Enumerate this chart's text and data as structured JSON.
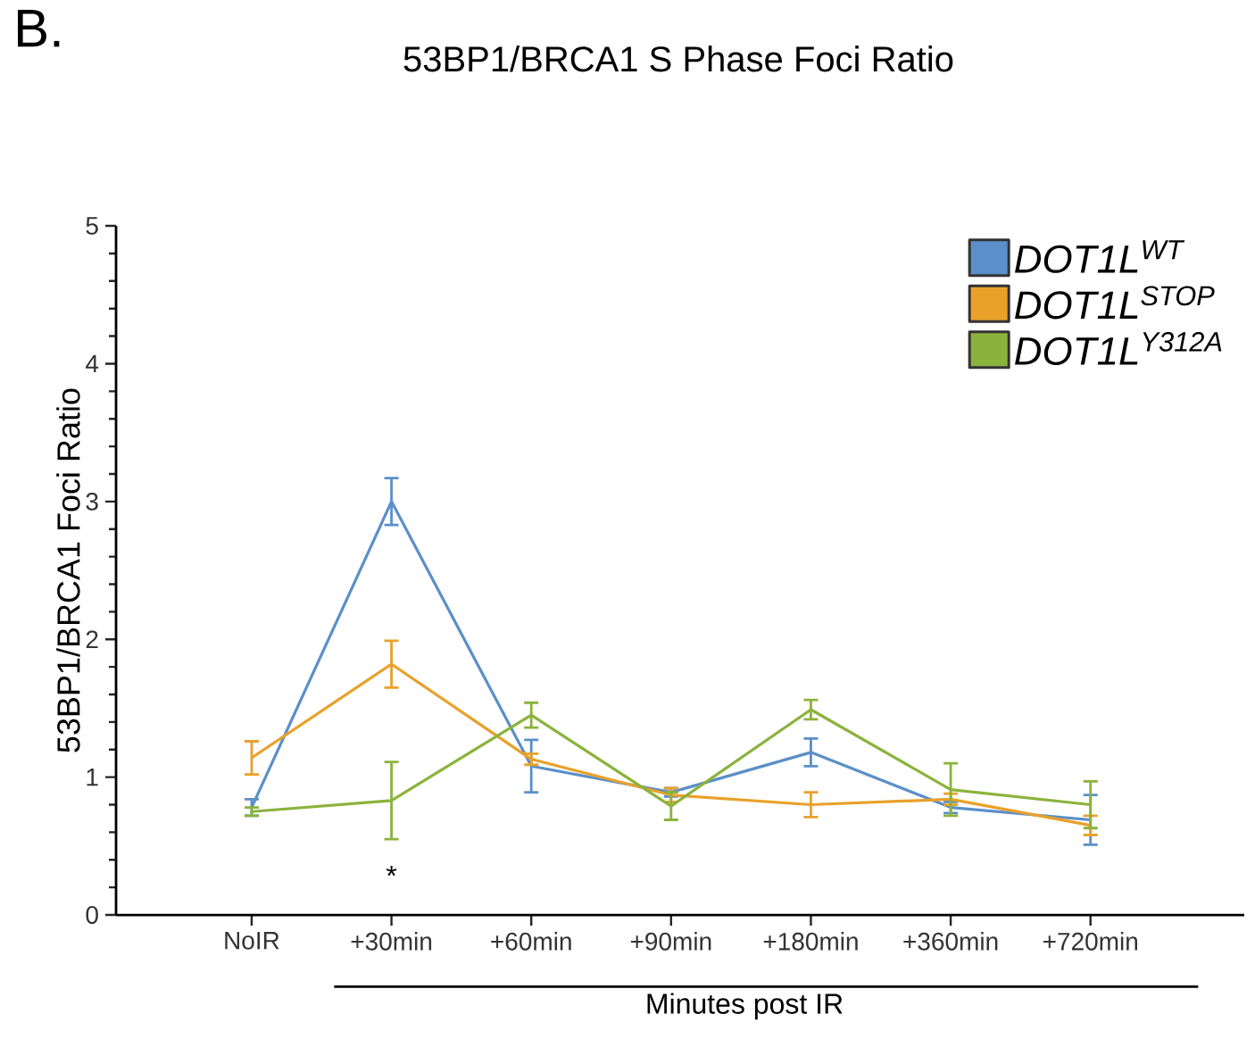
{
  "chart_data": {
    "type": "line",
    "title": "53BP1/BRCA1 S Phase Foci Ratio",
    "xlabel": "Minutes post IR",
    "ylabel": "53BP1/BRCA1 Foci Ratio",
    "categories": [
      "NoIR",
      "+30min",
      "+60min",
      "+90min",
      "+180min",
      "+360min",
      "+720min"
    ],
    "series": [
      {
        "name": "DOT1L$^{WT}$",
        "color": "#5b8fc9",
        "values": [
          0.78,
          3.0,
          1.08,
          0.89,
          1.18,
          0.78,
          0.69
        ],
        "errors": [
          0.06,
          0.17,
          0.19,
          0.03,
          0.1,
          0.04,
          0.18
        ]
      },
      {
        "name": "DOT1L$^{STOP}$",
        "color": "#e9a12a",
        "values": [
          1.14,
          1.82,
          1.13,
          0.87,
          0.8,
          0.84,
          0.65
        ],
        "errors": [
          0.12,
          0.17,
          0.04,
          0.05,
          0.09,
          0.04,
          0.07
        ]
      },
      {
        "name": "DOT1L$^{Y312A}$",
        "color": "#8bb33c",
        "values": [
          0.75,
          0.83,
          1.45,
          0.79,
          1.49,
          0.91,
          0.8
        ],
        "errors": [
          0.03,
          0.28,
          0.09,
          0.1,
          0.07,
          0.19,
          0.17
        ]
      }
    ],
    "ylim": [
      0,
      5
    ],
    "yticks": [
      0,
      1,
      2,
      3,
      4,
      5
    ],
    "grid": false,
    "legend": "top right",
    "line_style": "solid",
    "annotations": [
      "B.",
      "*"
    ]
  }
}
